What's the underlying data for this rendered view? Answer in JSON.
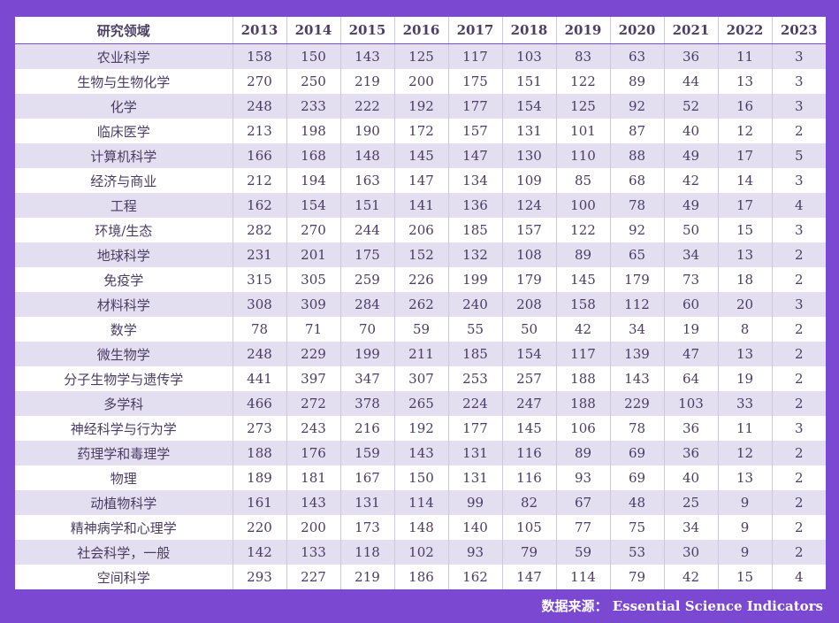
{
  "chart_data": {
    "type": "table",
    "header_label": "研究领域",
    "years": [
      "2013",
      "2014",
      "2015",
      "2016",
      "2017",
      "2018",
      "2019",
      "2020",
      "2021",
      "2022",
      "2023"
    ],
    "rows": [
      {
        "field": "农业科学",
        "values": [
          158,
          150,
          143,
          125,
          117,
          103,
          83,
          63,
          36,
          11,
          3
        ]
      },
      {
        "field": "生物与生物化学",
        "values": [
          270,
          250,
          219,
          200,
          175,
          151,
          122,
          89,
          44,
          13,
          3
        ]
      },
      {
        "field": "化学",
        "values": [
          248,
          233,
          222,
          192,
          177,
          154,
          125,
          92,
          52,
          16,
          3
        ]
      },
      {
        "field": "临床医学",
        "values": [
          213,
          198,
          190,
          172,
          157,
          131,
          101,
          87,
          40,
          12,
          2
        ]
      },
      {
        "field": "计算机科学",
        "values": [
          166,
          168,
          148,
          145,
          147,
          130,
          110,
          88,
          49,
          17,
          5
        ]
      },
      {
        "field": "经济与商业",
        "values": [
          212,
          194,
          163,
          147,
          134,
          109,
          85,
          68,
          42,
          14,
          3
        ]
      },
      {
        "field": "工程",
        "values": [
          162,
          154,
          151,
          141,
          136,
          124,
          100,
          78,
          49,
          17,
          4
        ]
      },
      {
        "field": "环境/生态",
        "values": [
          282,
          270,
          244,
          206,
          185,
          157,
          122,
          92,
          50,
          15,
          3
        ]
      },
      {
        "field": "地球科学",
        "values": [
          231,
          201,
          175,
          152,
          132,
          108,
          89,
          65,
          34,
          13,
          2
        ]
      },
      {
        "field": "免疫学",
        "values": [
          315,
          305,
          259,
          226,
          199,
          179,
          145,
          179,
          73,
          18,
          2
        ]
      },
      {
        "field": "材料科学",
        "values": [
          308,
          309,
          284,
          262,
          240,
          208,
          158,
          112,
          60,
          20,
          3
        ]
      },
      {
        "field": "数学",
        "values": [
          78,
          71,
          70,
          59,
          55,
          50,
          42,
          34,
          19,
          8,
          2
        ]
      },
      {
        "field": "微生物学",
        "values": [
          248,
          229,
          199,
          211,
          185,
          154,
          117,
          139,
          47,
          13,
          2
        ]
      },
      {
        "field": "分子生物学与遗传学",
        "values": [
          441,
          397,
          347,
          307,
          253,
          257,
          188,
          143,
          64,
          19,
          2
        ]
      },
      {
        "field": "多学科",
        "values": [
          466,
          272,
          378,
          265,
          224,
          247,
          188,
          229,
          103,
          33,
          2
        ]
      },
      {
        "field": "神经科学与行为学",
        "values": [
          273,
          243,
          216,
          192,
          177,
          145,
          106,
          78,
          36,
          11,
          3
        ]
      },
      {
        "field": "药理学和毒理学",
        "values": [
          188,
          176,
          159,
          143,
          131,
          116,
          89,
          69,
          36,
          12,
          2
        ]
      },
      {
        "field": "物理",
        "values": [
          189,
          181,
          167,
          150,
          131,
          116,
          93,
          69,
          40,
          13,
          2
        ]
      },
      {
        "field": "动植物科学",
        "values": [
          161,
          143,
          131,
          114,
          99,
          82,
          67,
          48,
          25,
          9,
          2
        ]
      },
      {
        "field": "精神病学和心理学",
        "values": [
          220,
          200,
          173,
          148,
          140,
          105,
          77,
          75,
          34,
          9,
          2
        ]
      },
      {
        "field": "社会科学，一般",
        "values": [
          142,
          133,
          118,
          102,
          93,
          79,
          59,
          53,
          30,
          9,
          2
        ]
      },
      {
        "field": "空间科学",
        "values": [
          293,
          227,
          219,
          186,
          162,
          147,
          114,
          79,
          42,
          15,
          4
        ]
      }
    ]
  },
  "source_note": "数据来源： Essential Science Indicators",
  "colors": {
    "frame": "#7b48d2",
    "stripe": "#e3def0",
    "text": "#4a3c63"
  }
}
